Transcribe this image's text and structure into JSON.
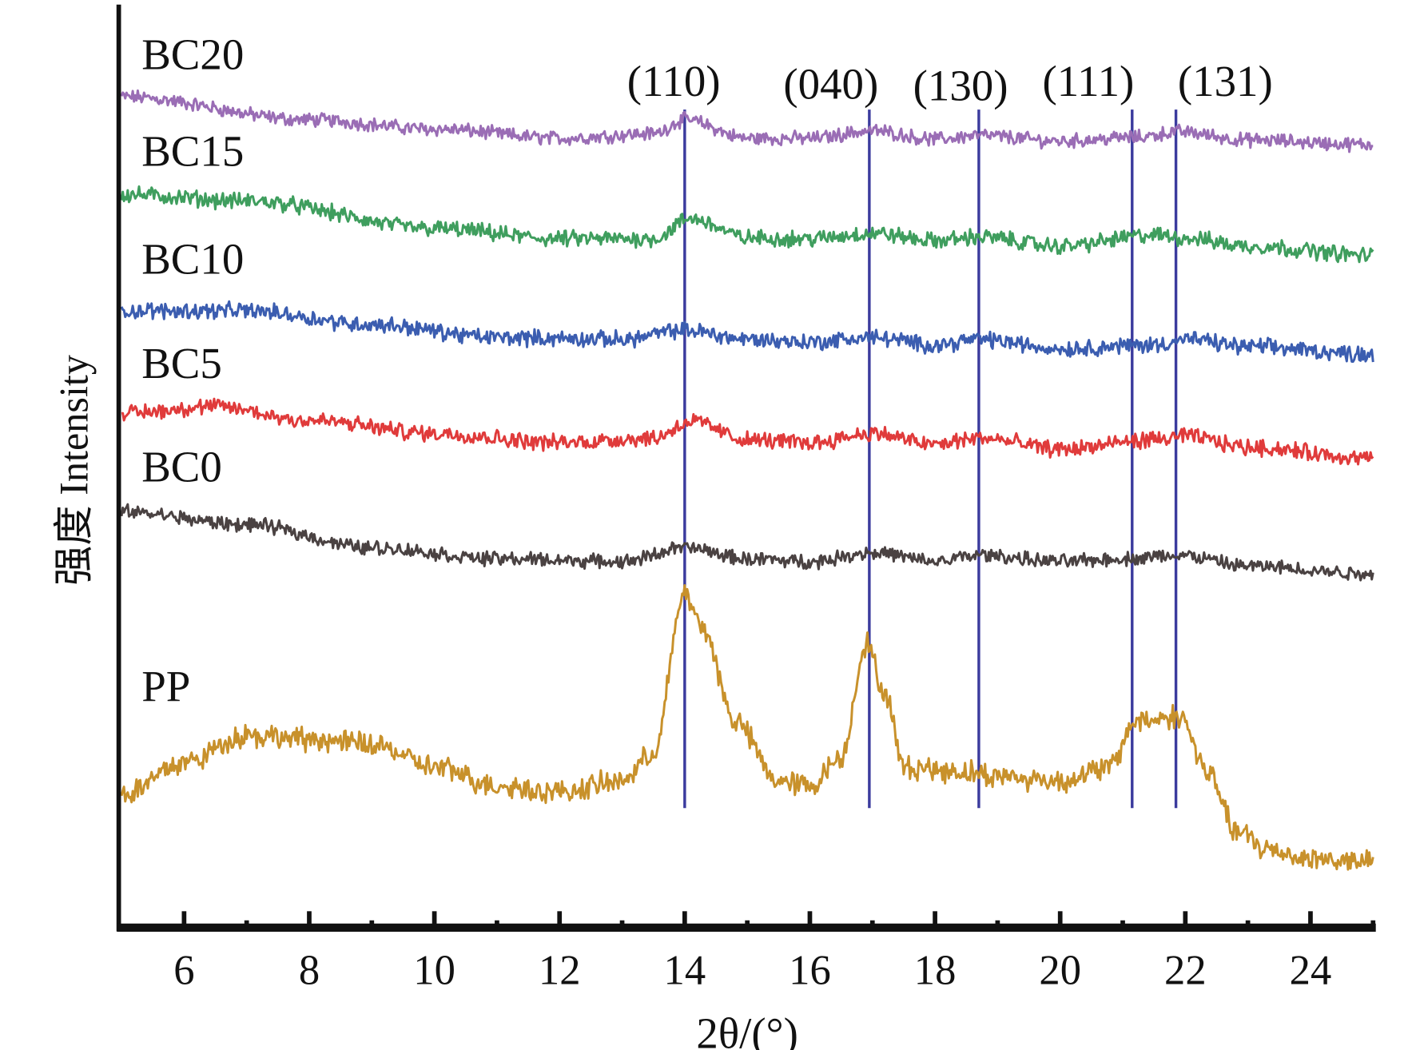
{
  "chart_data": {
    "type": "line",
    "title": "",
    "xlabel": "2θ/(°)",
    "ylabel": "强度 Intensity",
    "xlim": [
      5,
      25
    ],
    "ylim": [
      0,
      100
    ],
    "xticks": [
      6,
      8,
      10,
      12,
      14,
      16,
      18,
      20,
      22,
      24
    ],
    "grid": false,
    "legend": "inline labels at left of each curve",
    "reference_lines": [
      {
        "label": "(110)",
        "x": 14.0
      },
      {
        "label": "(040)",
        "x": 16.95
      },
      {
        "label": "(130)",
        "x": 18.7
      },
      {
        "label": "(111)",
        "x": 21.15
      },
      {
        "label": "(131)",
        "x": 21.85
      }
    ],
    "reference_color": "#3b3b9e",
    "series": [
      {
        "name": "BC20",
        "color": "#9a6db5",
        "noise": 0.6,
        "label_y": 93,
        "x": [
          5,
          8,
          10,
          12,
          13.5,
          14,
          15,
          16,
          17,
          18,
          18.7,
          20,
          21.2,
          21.9,
          23,
          25
        ],
        "y": [
          90,
          87.5,
          86.5,
          85.5,
          86,
          87.5,
          85.5,
          85.5,
          86.3,
          85.4,
          85.8,
          85.2,
          85.6,
          86.2,
          85.3,
          84.8
        ]
      },
      {
        "name": "BC15",
        "color": "#3f9e5e",
        "noise": 0.7,
        "label_y": 82.5,
        "x": [
          5,
          7,
          10,
          12,
          13.5,
          14.1,
          15,
          16,
          17,
          18,
          18.7,
          20,
          21.5,
          22,
          23,
          25
        ],
        "y": [
          79.4,
          78.7,
          75.7,
          74.6,
          74.6,
          76.8,
          74.7,
          74.6,
          75.2,
          74.4,
          74.8,
          73.8,
          75,
          74.7,
          73.8,
          72.8
        ]
      },
      {
        "name": "BC10",
        "color": "#3b5db0",
        "noise": 0.7,
        "label_y": 70.8,
        "x": [
          5,
          7,
          9,
          11,
          13,
          14,
          15,
          16,
          17,
          18,
          18.7,
          20,
          21.5,
          22,
          23,
          25
        ],
        "y": [
          66.8,
          66.8,
          65.3,
          63.9,
          63.7,
          64.7,
          63.7,
          63.4,
          63.9,
          63.1,
          63.7,
          62.7,
          63.1,
          63.7,
          62.9,
          62.1
        ]
      },
      {
        "name": "BC5",
        "color": "#e03b3b",
        "noise": 0.7,
        "label_y": 59.5,
        "x": [
          5,
          6.5,
          8,
          10,
          12,
          13.5,
          14.1,
          15,
          16,
          17,
          18,
          18.7,
          20,
          21.5,
          22,
          23,
          25
        ],
        "y": [
          55.7,
          56.4,
          54.9,
          53.5,
          52.5,
          53,
          54.8,
          52.8,
          52.5,
          53.5,
          52.3,
          53,
          51.8,
          52.8,
          53.2,
          52,
          50.8
        ]
      },
      {
        "name": "BC0",
        "color": "#4a4242",
        "noise": 0.6,
        "label_y": 48.3,
        "x": [
          5,
          7,
          9,
          11,
          13,
          14,
          15,
          16,
          17,
          18,
          18.7,
          20,
          21,
          21.9,
          23,
          25
        ],
        "y": [
          45,
          43.6,
          41.1,
          39.9,
          39.6,
          41.1,
          39.9,
          39.6,
          40.6,
          39.6,
          40.3,
          39.6,
          39.9,
          40.3,
          39.1,
          38.3
        ]
      },
      {
        "name": "PP",
        "color": "#c8912b",
        "noise": 1.0,
        "label_y": 24.5,
        "x": [
          5,
          6,
          7,
          8,
          9,
          10,
          11,
          12,
          13,
          13.5,
          14,
          14.3,
          14.8,
          15.5,
          16,
          16.5,
          16.9,
          17.2,
          17.5,
          18.5,
          19,
          20,
          20.8,
          21.2,
          21.9,
          22.4,
          22.8,
          23.3,
          24,
          25
        ],
        "y": [
          14.4,
          17.8,
          20.8,
          20.3,
          19.8,
          17.3,
          15.3,
          14.6,
          15.8,
          18.8,
          36.1,
          32.2,
          22.3,
          15.8,
          15.3,
          18.3,
          30.7,
          25.3,
          17.3,
          16.8,
          16.3,
          15.8,
          17.3,
          22.3,
          22.8,
          16.3,
          10.4,
          8.4,
          7.4,
          6.9
        ]
      }
    ]
  }
}
